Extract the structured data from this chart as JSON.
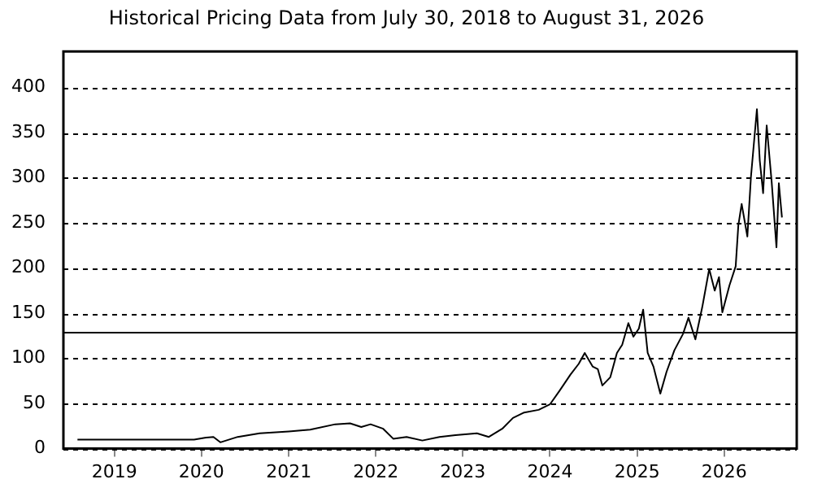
{
  "chart_data": {
    "type": "line",
    "title": "Historical Pricing Data from July 30, 2018 to August 31, 2026",
    "x": [
      "2018-07-30",
      "2019-06-01",
      "2019-12-01",
      "2020-01-15",
      "2020-02-20",
      "2020-03-20",
      "2020-06-01",
      "2020-09-01",
      "2021-01-01",
      "2021-04-01",
      "2021-07-15",
      "2021-09-15",
      "2021-11-01",
      "2021-12-10",
      "2022-02-01",
      "2022-03-15",
      "2022-05-10",
      "2022-07-15",
      "2022-09-25",
      "2022-12-01",
      "2023-03-01",
      "2023-04-20",
      "2023-06-15",
      "2023-07-30",
      "2023-09-15",
      "2023-11-15",
      "2024-01-01",
      "2024-02-10",
      "2024-03-27",
      "2024-05-01",
      "2024-05-26",
      "2024-06-28",
      "2024-07-20",
      "2024-08-08",
      "2024-09-10",
      "2024-10-08",
      "2024-10-30",
      "2024-11-25",
      "2024-12-16",
      "2025-01-08",
      "2025-01-26",
      "2025-02-14",
      "2025-03-10",
      "2025-04-08",
      "2025-05-04",
      "2025-06-06",
      "2025-07-12",
      "2025-08-04",
      "2025-09-02",
      "2025-10-01",
      "2025-10-30",
      "2025-11-22",
      "2025-12-10",
      "2025-12-24",
      "2026-01-23",
      "2026-02-18",
      "2026-03-01",
      "2026-03-15",
      "2026-04-08",
      "2026-04-23",
      "2026-05-18",
      "2026-05-30",
      "2026-06-13",
      "2026-06-28",
      "2026-07-19",
      "2026-08-08",
      "2026-08-18",
      "2026-08-31"
    ],
    "series": [
      {
        "color": "#000000",
        "values": [
          10,
          10,
          10,
          12,
          13,
          7,
          13,
          17,
          19,
          21,
          27,
          28,
          24,
          27,
          22,
          11,
          13,
          9,
          13,
          15,
          17,
          13,
          22,
          34,
          40,
          43,
          49,
          64,
          82,
          94,
          106,
          91,
          88,
          70,
          79,
          106,
          115,
          139,
          124,
          133,
          154,
          106,
          91,
          61,
          85,
          109,
          127,
          145,
          121,
          157,
          199,
          175,
          190,
          151,
          181,
          202,
          247,
          271,
          235,
          301,
          376,
          319,
          283,
          358,
          295,
          223,
          294,
          256
        ]
      }
    ],
    "xlim": [
      "2018-06-01",
      "2026-11-01"
    ],
    "xticks": [
      "2019",
      "2020",
      "2021",
      "2022",
      "2023",
      "2024",
      "2025",
      "2026"
    ],
    "ylim": [
      0,
      440
    ],
    "yticks": [
      0,
      50,
      100,
      150,
      200,
      250,
      300,
      350,
      400
    ],
    "grid": "y",
    "legend": false,
    "marker": "none",
    "line_style": "solid",
    "ref_lines": [
      {
        "axis": "y",
        "value": 130,
        "color": "#000000",
        "line_style": "solid"
      }
    ]
  }
}
